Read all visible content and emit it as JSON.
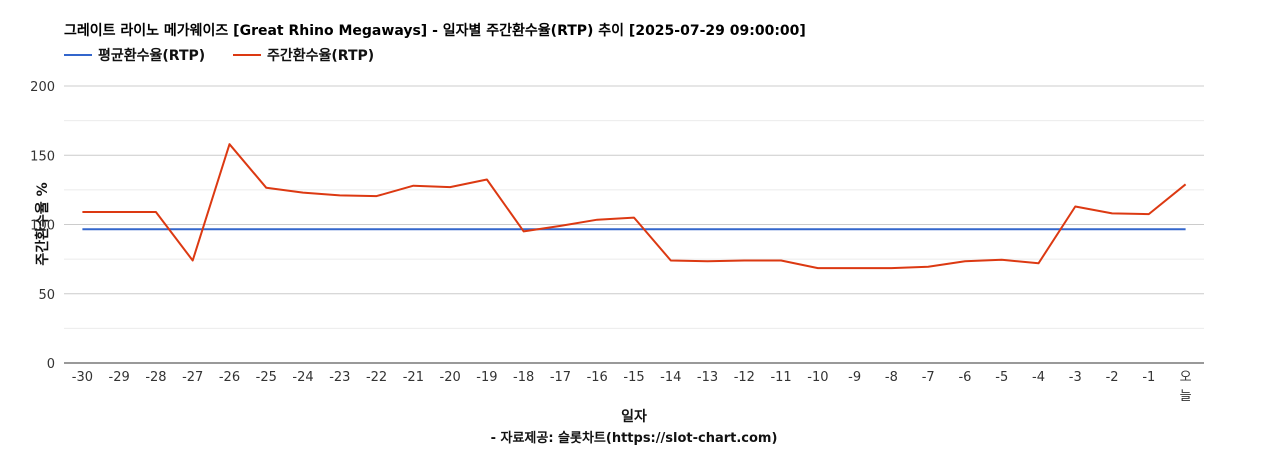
{
  "chart_data": {
    "type": "line",
    "title": "그레이트 라이노 메가웨이즈 [Great Rhino Megaways] - 일자별 주간환수율(RTP) 추이 [2025-07-29 09:00:00]",
    "xlabel": "일자",
    "ylabel": "주간환수율 %",
    "source": "- 자료제공: 슬롯차트(https://slot-chart.com)",
    "ylim": [
      0,
      200
    ],
    "yticks": [
      "0",
      "50",
      "100",
      "150",
      "200"
    ],
    "categories": [
      "-30",
      "-29",
      "-28",
      "-27",
      "-26",
      "-25",
      "-24",
      "-23",
      "-22",
      "-21",
      "-20",
      "-19",
      "-18",
      "-17",
      "-16",
      "-15",
      "-14",
      "-13",
      "-12",
      "-11",
      "-10",
      "-9",
      "-8",
      "-7",
      "-6",
      "-5",
      "-4",
      "-3",
      "-2",
      "-1",
      "오늘"
    ],
    "legend_position": "top-left",
    "grid": true,
    "series": [
      {
        "name": "평균환수율(RTP)",
        "color": "#3366cc",
        "values": [
          96.5,
          96.5,
          96.5,
          96.5,
          96.5,
          96.5,
          96.5,
          96.5,
          96.5,
          96.5,
          96.5,
          96.5,
          96.5,
          96.5,
          96.5,
          96.5,
          96.5,
          96.5,
          96.5,
          96.5,
          96.5,
          96.5,
          96.5,
          96.5,
          96.5,
          96.5,
          96.5,
          96.5,
          96.5,
          96.5,
          96.5
        ]
      },
      {
        "name": "주간환수율(RTP)",
        "color": "#dc3912",
        "values": [
          109,
          109,
          109,
          74,
          158,
          126.5,
          123,
          121,
          120.5,
          128,
          127,
          132.5,
          95,
          99,
          103.5,
          105,
          74,
          73.5,
          74,
          74,
          68.5,
          68.5,
          68.5,
          69.5,
          73.5,
          74.5,
          72,
          113,
          108,
          107.5,
          129
        ]
      }
    ]
  }
}
